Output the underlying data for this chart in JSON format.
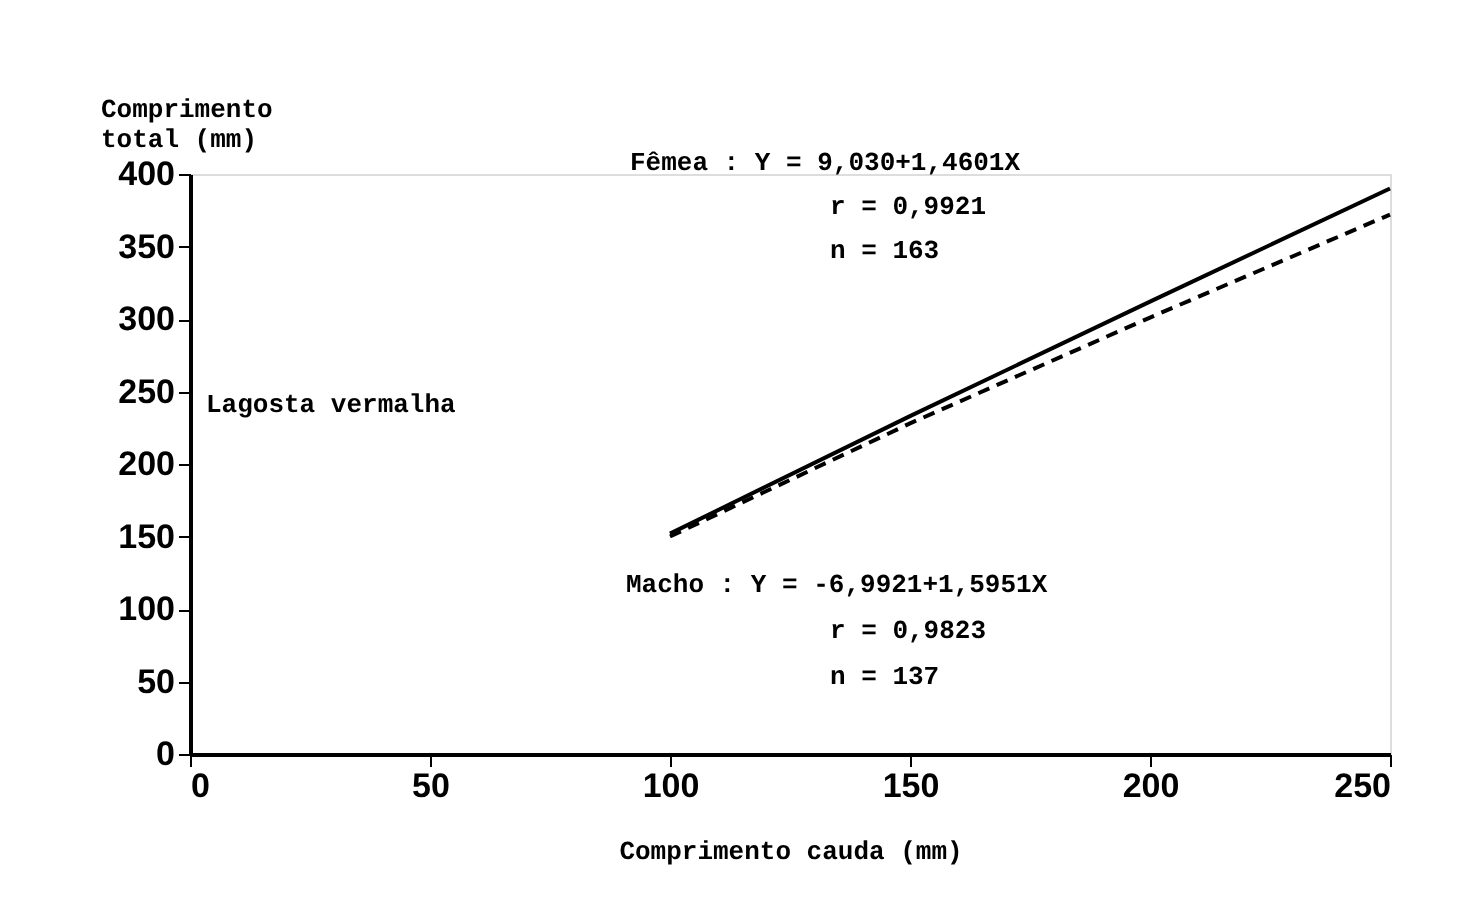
{
  "chart_data": {
    "type": "line",
    "xlabel": "Comprimento cauda (mm)",
    "ylabel": "Comprimento total (mm)",
    "xlim": [
      0,
      250
    ],
    "xticks": [
      0,
      50,
      100,
      150,
      200,
      250
    ],
    "ylim": [
      0,
      400
    ],
    "yticks": [
      0,
      50,
      100,
      150,
      200,
      250,
      300,
      350,
      400
    ],
    "grid": false,
    "marker": "none",
    "series": [
      {
        "color": "#000000",
        "line_style": "solid",
        "x": [
          100,
          150,
          200,
          250
        ],
        "values": [
          152,
          233,
          312,
          390
        ]
      },
      {
        "color": "#000000",
        "line_style": "dashed",
        "x": [
          100,
          150,
          200,
          250
        ],
        "values": [
          150,
          228,
          301,
          372
        ]
      }
    ],
    "annotations": [
      "Lagosta vermalha",
      "Fêmea : Y = 9,030+1,4601X",
      "r = 0,9921",
      "n = 163",
      "Macho :  Y = -6,9921+1,5951X",
      "r = 0,9823",
      "n = 137"
    ]
  }
}
